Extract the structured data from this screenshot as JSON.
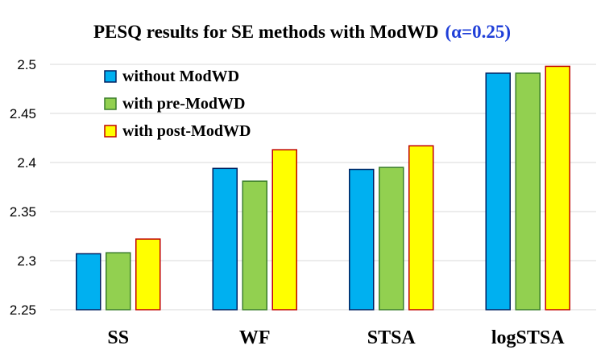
{
  "chart_data": {
    "type": "bar",
    "title": "PESQ results for SE methods with ModWD",
    "title_accent": "(α=0.25)",
    "xlabel": "",
    "ylabel": "",
    "categories": [
      "SS",
      "WF",
      "STSA",
      "logSTSA"
    ],
    "ylim": [
      2.25,
      2.5
    ],
    "yticks": [
      2.25,
      2.3,
      2.35,
      2.4,
      2.45,
      2.5
    ],
    "ytick_labels": [
      "2.25",
      "2.3",
      "2.35",
      "2.4",
      "2.45",
      "2.5"
    ],
    "grid": true,
    "legend_position": "top-left",
    "series": [
      {
        "name": "without ModWD",
        "values": [
          2.307,
          2.394,
          2.393,
          2.491
        ],
        "color": "#00b0f0",
        "edge": "#002060"
      },
      {
        "name": "with pre-ModWD",
        "values": [
          2.308,
          2.381,
          2.395,
          2.491
        ],
        "color": "#92d050",
        "edge": "#3a7d2a"
      },
      {
        "name": "with post-ModWD",
        "values": [
          2.322,
          2.413,
          2.417,
          2.498
        ],
        "color": "#ffff00",
        "edge": "#c00000"
      }
    ]
  }
}
